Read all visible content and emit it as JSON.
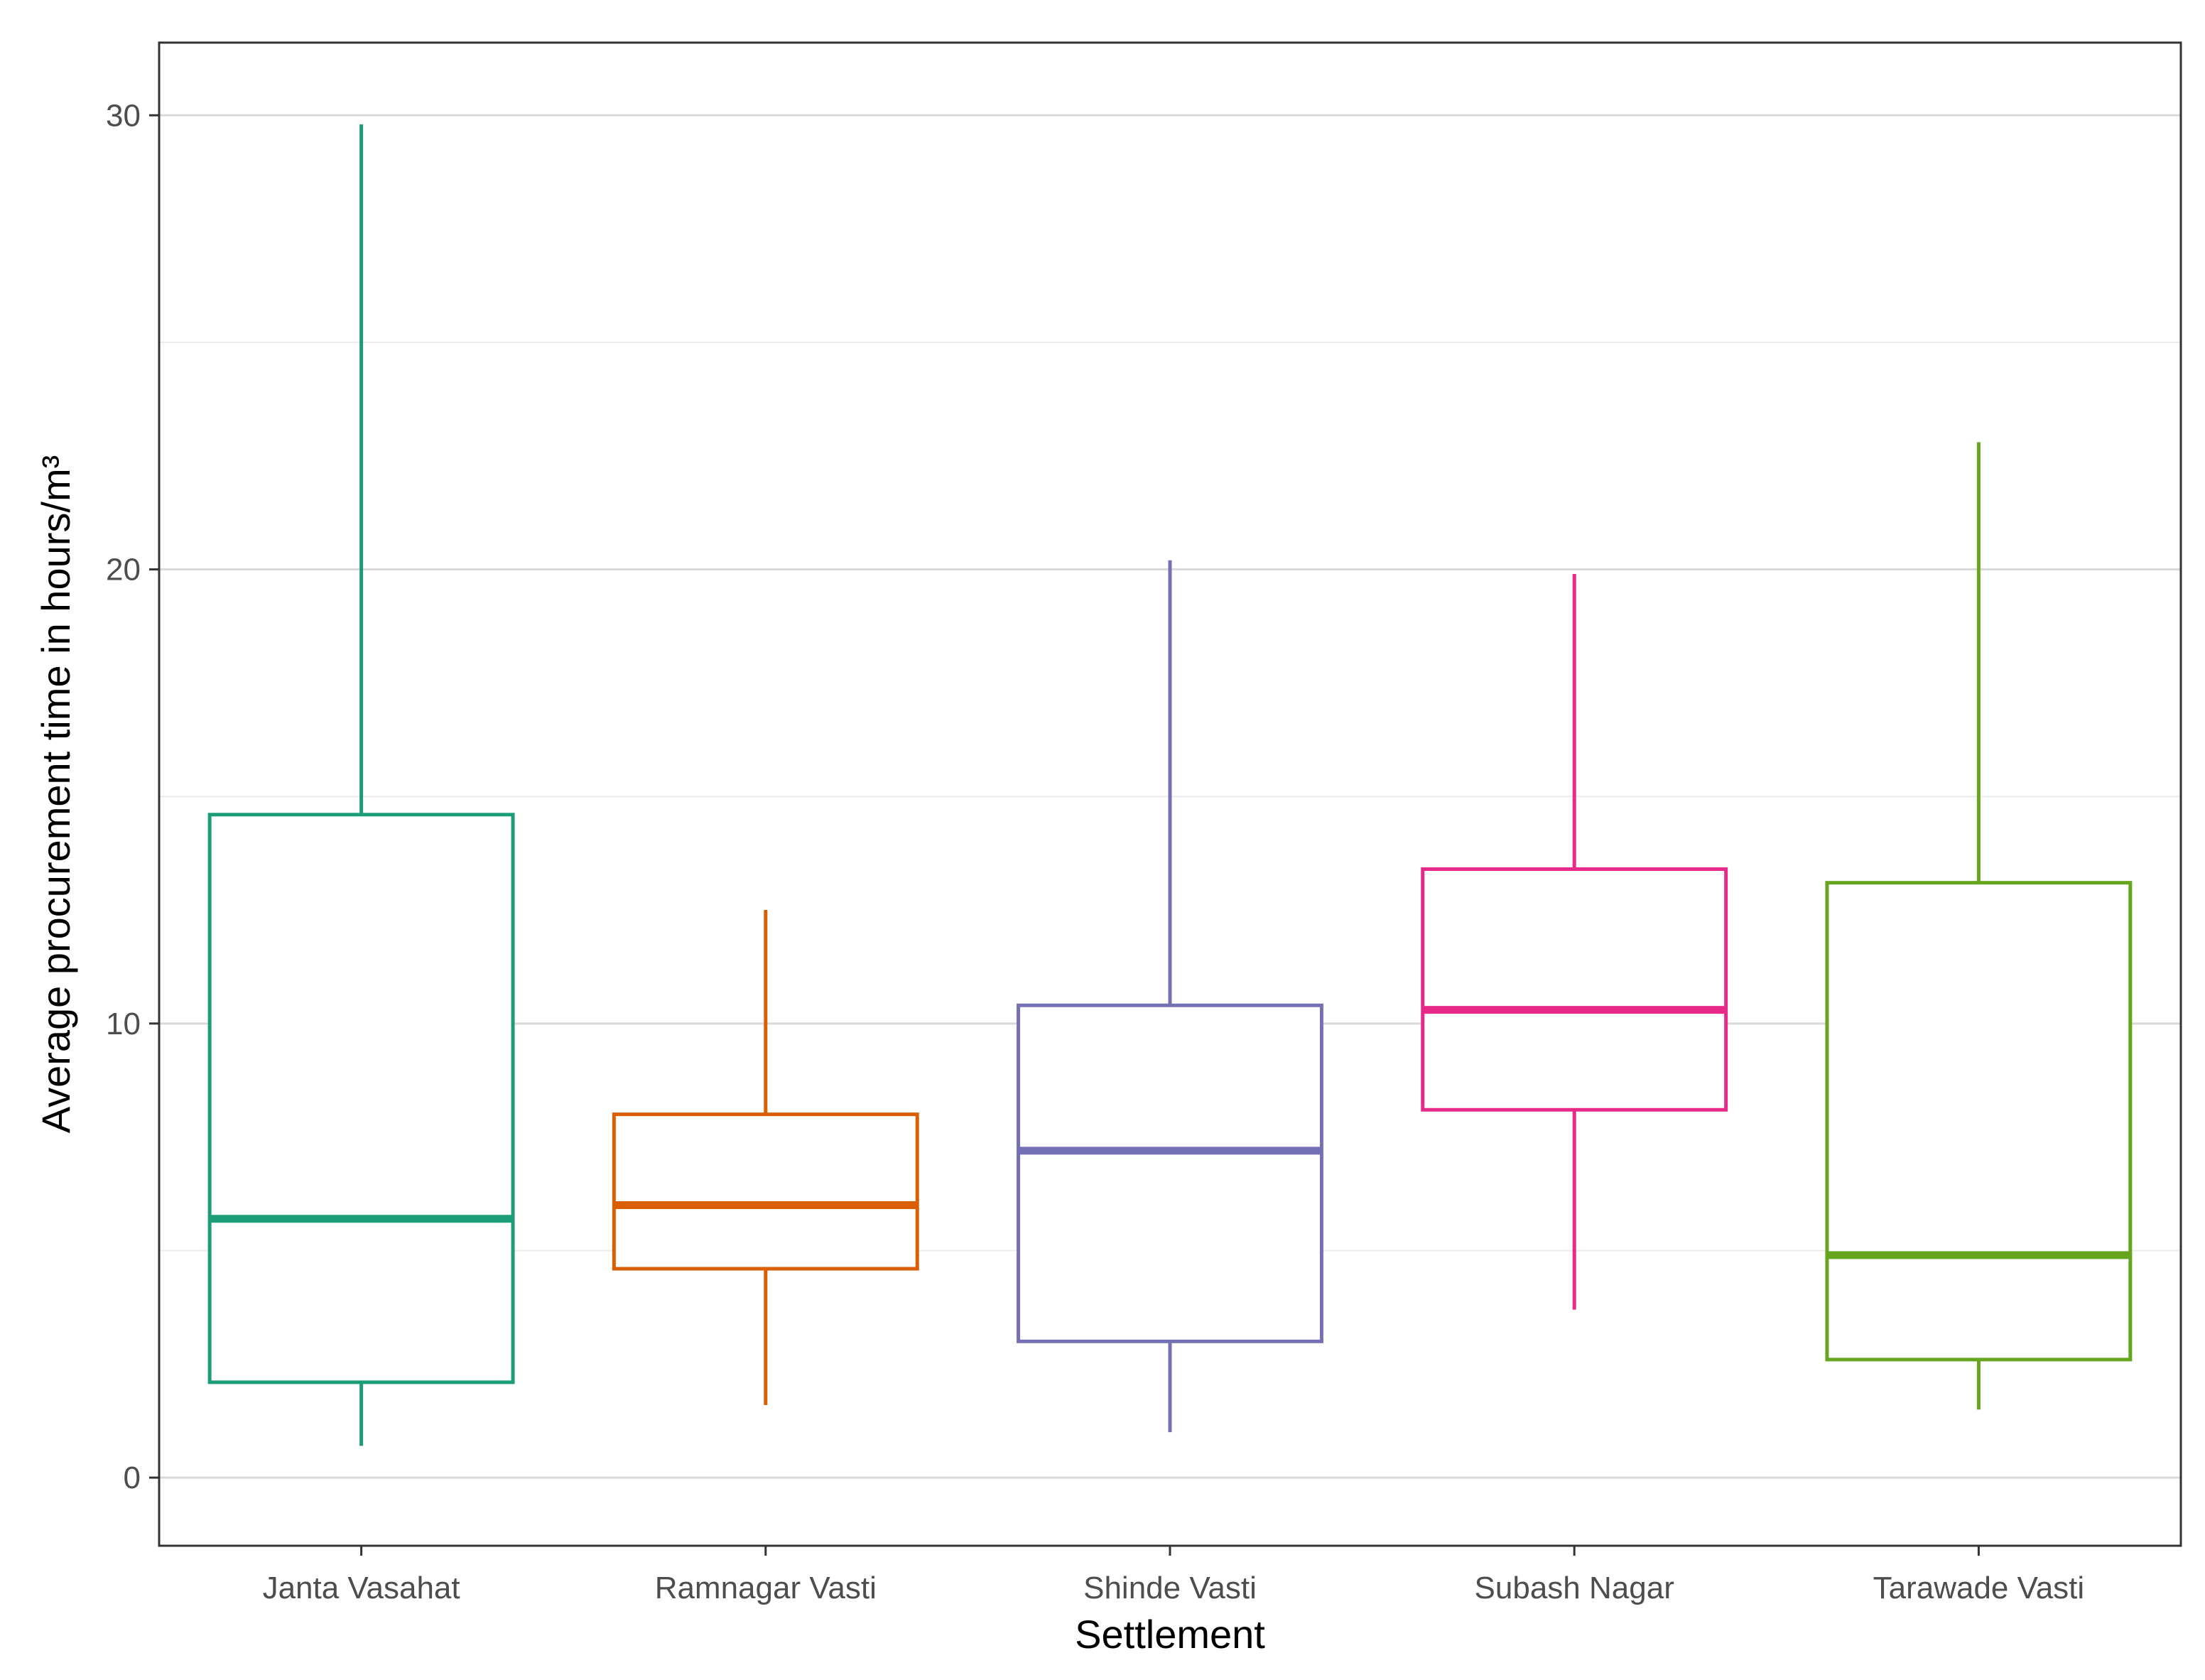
{
  "chart_data": {
    "type": "boxplot",
    "title": "",
    "xlabel": "Settlement",
    "ylabel": "Average procurement time in hours/m³",
    "ylim": [
      -1.5,
      31.6
    ],
    "yticks": [
      0,
      10,
      20,
      30
    ],
    "ytick_labels": [
      "0",
      "10",
      "20",
      "30"
    ],
    "minor_gridlines": [
      5,
      15,
      25
    ],
    "grid": true,
    "legend": "none",
    "categories": [
      "Janta Vasahat",
      "Ramnagar Vasti",
      "Shinde Vasti",
      "Subash Nagar",
      "Tarawade Vasti"
    ],
    "colors": [
      "#1b9e77",
      "#d95f02",
      "#7570b3",
      "#e7298a",
      "#66a61e"
    ],
    "boxes": [
      {
        "name": "Janta Vasahat",
        "whisker_low": 0.7,
        "q1": 2.1,
        "median": 5.7,
        "q3": 14.6,
        "whisker_high": 29.8
      },
      {
        "name": "Ramnagar Vasti",
        "whisker_low": 1.6,
        "q1": 4.6,
        "median": 6.0,
        "q3": 8.0,
        "whisker_high": 12.5
      },
      {
        "name": "Shinde Vasti",
        "whisker_low": 1.0,
        "q1": 3.0,
        "median": 7.2,
        "q3": 10.4,
        "whisker_high": 20.2
      },
      {
        "name": "Subash Nagar",
        "whisker_low": 3.7,
        "q1": 8.1,
        "median": 10.3,
        "q3": 13.4,
        "whisker_high": 19.9
      },
      {
        "name": "Tarawade Vasti",
        "whisker_low": 1.5,
        "q1": 2.6,
        "median": 4.9,
        "q3": 13.1,
        "whisker_high": 22.8
      }
    ]
  }
}
